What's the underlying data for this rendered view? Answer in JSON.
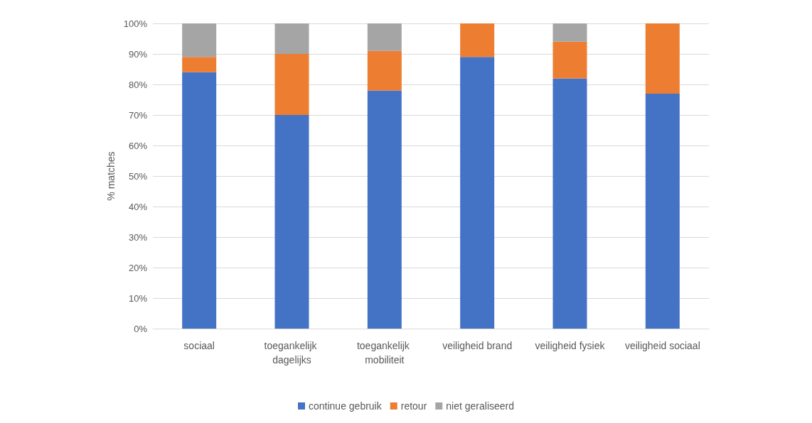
{
  "chart_data": {
    "type": "bar",
    "stacked": true,
    "ylabel": "% matches",
    "categories": [
      "sociaal",
      "toegankelijk dagelijks",
      "toegankelijk mobiliteit",
      "veiligheid brand",
      "veiligheid fysiek",
      "veiligheid sociaal"
    ],
    "series": [
      {
        "name": "continue gebruik",
        "color": "#4472c4",
        "values": [
          84,
          70,
          78,
          89,
          82,
          77
        ]
      },
      {
        "name": "retour",
        "color": "#ed7d31",
        "values": [
          5,
          20,
          13,
          11,
          12,
          23
        ]
      },
      {
        "name": "niet geraliseerd",
        "color": "#a5a5a5",
        "values": [
          11,
          10,
          9,
          0,
          6,
          0
        ]
      }
    ],
    "ylim": [
      0,
      100
    ],
    "yticks": [
      {
        "value": 0,
        "label": "0%"
      },
      {
        "value": 10,
        "label": "10%"
      },
      {
        "value": 20,
        "label": "20%"
      },
      {
        "value": 30,
        "label": "30%"
      },
      {
        "value": 40,
        "label": "40%"
      },
      {
        "value": 50,
        "label": "50%"
      },
      {
        "value": 60,
        "label": "60%"
      },
      {
        "value": 70,
        "label": "70%"
      },
      {
        "value": 80,
        "label": "80%"
      },
      {
        "value": 90,
        "label": "90%"
      },
      {
        "value": 100,
        "label": "100%"
      }
    ],
    "grid": "y",
    "legend": "bottom"
  }
}
